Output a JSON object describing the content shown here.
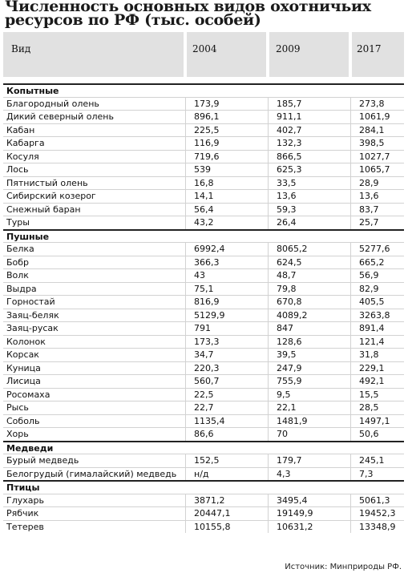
{
  "title": "Численность основных видов охотничьих ресурсов по РФ (тыс. особей)",
  "header": {
    "name": "Вид",
    "years": [
      "2004",
      "2009",
      "2017"
    ]
  },
  "categories": [
    {
      "name": "Копытные",
      "rows": [
        {
          "name": "Благородный олень",
          "values": [
            "173,9",
            "185,7",
            "273,8"
          ]
        },
        {
          "name": "Дикий северный олень",
          "values": [
            "896,1",
            "911,1",
            "1061,9"
          ]
        },
        {
          "name": "Кабан",
          "values": [
            "225,5",
            "402,7",
            "284,1"
          ]
        },
        {
          "name": "Кабарга",
          "values": [
            "116,9",
            "132,3",
            "398,5"
          ]
        },
        {
          "name": "Косуля",
          "values": [
            "719,6",
            "866,5",
            "1027,7"
          ]
        },
        {
          "name": "Лось",
          "values": [
            "539",
            "625,3",
            "1065,7"
          ]
        },
        {
          "name": "Пятнистый олень",
          "values": [
            "16,8",
            "33,5",
            "28,9"
          ]
        },
        {
          "name": "Сибирский козерог",
          "values": [
            "14,1",
            "13,6",
            "13,6"
          ]
        },
        {
          "name": "Снежный баран",
          "values": [
            "56,4",
            "59,3",
            "83,7"
          ]
        },
        {
          "name": "Туры",
          "values": [
            "43,2",
            "26,4",
            "25,7"
          ]
        }
      ]
    },
    {
      "name": "Пушные",
      "rows": [
        {
          "name": "Белка",
          "values": [
            "6992,4",
            "8065,2",
            "5277,6"
          ]
        },
        {
          "name": "Бобр",
          "values": [
            "366,3",
            "624,5",
            "665,2"
          ]
        },
        {
          "name": "Волк",
          "values": [
            "43",
            "48,7",
            "56,9"
          ]
        },
        {
          "name": "Выдра",
          "values": [
            "75,1",
            "79,8",
            "82,9"
          ]
        },
        {
          "name": "Горностай",
          "values": [
            "816,9",
            "670,8",
            "405,5"
          ]
        },
        {
          "name": "Заяц-беляк",
          "values": [
            "5129,9",
            "4089,2",
            "3263,8"
          ]
        },
        {
          "name": "Заяц-русак",
          "values": [
            "791",
            "847",
            "891,4"
          ]
        },
        {
          "name": "Колонок",
          "values": [
            "173,3",
            "128,6",
            "121,4"
          ]
        },
        {
          "name": "Корсак",
          "values": [
            "34,7",
            "39,5",
            "31,8"
          ]
        },
        {
          "name": "Куница",
          "values": [
            "220,3",
            "247,9",
            "229,1"
          ]
        },
        {
          "name": "Лисица",
          "values": [
            "560,7",
            "755,9",
            "492,1"
          ]
        },
        {
          "name": "Росомаха",
          "values": [
            "22,5",
            "9,5",
            "15,5"
          ]
        },
        {
          "name": "Рысь",
          "values": [
            "22,7",
            "22,1",
            "28,5"
          ]
        },
        {
          "name": "Соболь",
          "values": [
            "1135,4",
            "1481,9",
            "1497,1"
          ]
        },
        {
          "name": "Хорь",
          "values": [
            "86,6",
            "70",
            "50,6"
          ]
        }
      ]
    },
    {
      "name": "Медведи",
      "rows": [
        {
          "name": "Бурый медведь",
          "values": [
            "152,5",
            "179,7",
            "245,1"
          ]
        },
        {
          "name": "Белогрудый (гималайский) медведь",
          "values": [
            "н/д",
            "4,3",
            "7,3"
          ]
        }
      ]
    },
    {
      "name": "Птицы",
      "rows": [
        {
          "name": "Глухарь",
          "values": [
            "3871,2",
            "3495,4",
            "5061,3"
          ]
        },
        {
          "name": "Рябчик",
          "values": [
            "20447,1",
            "19149,9",
            "19452,3"
          ]
        },
        {
          "name": "Тетерев",
          "values": [
            "10155,8",
            "10631,2",
            "13348,9"
          ]
        }
      ]
    }
  ],
  "source": "Источник: Минприроды РФ."
}
